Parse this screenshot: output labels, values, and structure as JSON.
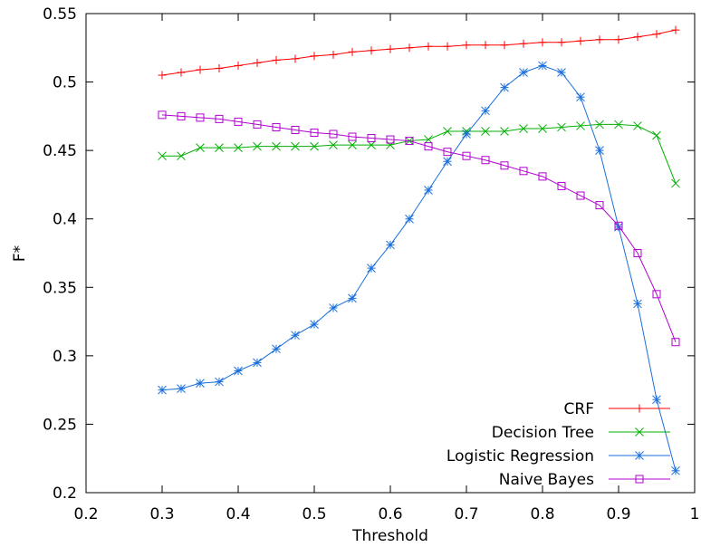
{
  "chart_data": {
    "type": "line",
    "title": "",
    "xlabel": "Threshold",
    "ylabel": "F*",
    "xlim": [
      0.2,
      1.0
    ],
    "ylim": [
      0.2,
      0.55
    ],
    "xticks": [
      "0.2",
      "0.3",
      "0.4",
      "0.5",
      "0.6",
      "0.7",
      "0.8",
      "0.9",
      "1"
    ],
    "yticks": [
      "0.2",
      "0.25",
      "0.3",
      "0.35",
      "0.4",
      "0.45",
      "0.5",
      "0.55"
    ],
    "grid": false,
    "legend_position": "bottom-right",
    "x": [
      0.3,
      0.325,
      0.35,
      0.375,
      0.4,
      0.425,
      0.45,
      0.475,
      0.5,
      0.525,
      0.55,
      0.575,
      0.6,
      0.625,
      0.65,
      0.675,
      0.7,
      0.725,
      0.75,
      0.775,
      0.8,
      0.825,
      0.85,
      0.875,
      0.9,
      0.925,
      0.95,
      0.975
    ],
    "series": [
      {
        "name": "CRF",
        "color": "#ff0000",
        "marker": "plus",
        "values": [
          0.505,
          0.507,
          0.509,
          0.51,
          0.512,
          0.514,
          0.516,
          0.517,
          0.519,
          0.52,
          0.522,
          0.523,
          0.524,
          0.525,
          0.526,
          0.526,
          0.527,
          0.527,
          0.527,
          0.528,
          0.529,
          0.529,
          0.53,
          0.531,
          0.531,
          0.533,
          0.535,
          0.538
        ]
      },
      {
        "name": "Decision Tree",
        "color": "#00b000",
        "marker": "cross",
        "values": [
          0.446,
          0.446,
          0.452,
          0.452,
          0.452,
          0.453,
          0.453,
          0.453,
          0.453,
          0.454,
          0.454,
          0.454,
          0.454,
          0.457,
          0.458,
          0.464,
          0.464,
          0.464,
          0.464,
          0.466,
          0.466,
          0.467,
          0.468,
          0.469,
          0.469,
          0.468,
          0.461,
          0.426
        ]
      },
      {
        "name": "Logistic Regression",
        "color": "#1a6fdc",
        "marker": "star",
        "values": [
          0.275,
          0.276,
          0.28,
          0.281,
          0.289,
          0.295,
          0.305,
          0.315,
          0.323,
          0.335,
          0.342,
          0.364,
          0.381,
          0.4,
          0.421,
          0.442,
          0.462,
          0.479,
          0.496,
          0.507,
          0.512,
          0.507,
          0.489,
          0.45,
          0.394,
          0.338,
          0.268,
          0.216
        ]
      },
      {
        "name": "Naive Bayes",
        "color": "#b000d0",
        "marker": "square",
        "values": [
          0.476,
          0.475,
          0.474,
          0.473,
          0.471,
          0.469,
          0.467,
          0.465,
          0.463,
          0.462,
          0.46,
          0.459,
          0.458,
          0.457,
          0.453,
          0.449,
          0.446,
          0.443,
          0.439,
          0.435,
          0.431,
          0.424,
          0.417,
          0.41,
          0.395,
          0.375,
          0.345,
          0.31
        ]
      }
    ]
  }
}
